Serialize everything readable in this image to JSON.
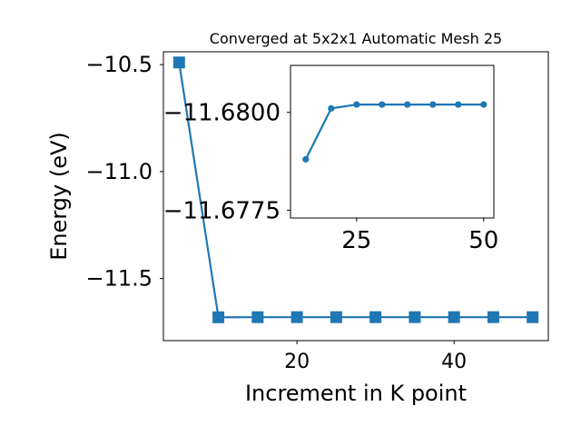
{
  "colors": {
    "series": "#1f77b4",
    "axis": "#000000",
    "background": "#ffffff"
  },
  "chart_data": [
    {
      "type": "line",
      "title": "Converged at 5x2x1 Automatic Mesh 25",
      "xlabel": "Increment in K point",
      "ylabel": "Energy (eV)",
      "xlim": [
        3.0,
        52.0
      ],
      "ylim": [
        -11.79,
        -10.44
      ],
      "xticks": [
        20,
        40
      ],
      "xtick_labels": [
        "20",
        "40"
      ],
      "yticks": [
        -10.5,
        -11.0,
        -11.5
      ],
      "ytick_labels": [
        "−10.5",
        "−11.0",
        "−11.5"
      ],
      "marker": "square",
      "grid": false,
      "series": [
        {
          "x": [
            5,
            10,
            15,
            20,
            25,
            30,
            35,
            40,
            45,
            50
          ],
          "values": [
            -10.49,
            -11.6809,
            -11.6804,
            -11.6803,
            -11.6803,
            -11.6803,
            -11.6803,
            -11.6803,
            -11.6803,
            -11.6803
          ]
        }
      ]
    },
    {
      "type": "line",
      "title": "",
      "xlabel": "",
      "ylabel": "",
      "xlim": [
        12.0,
        52.0
      ],
      "ylim": [
        -11.6773,
        -11.6812
      ],
      "xticks": [
        25,
        50
      ],
      "xtick_labels": [
        "25",
        "50"
      ],
      "yticks": [
        -11.68,
        -11.6775
      ],
      "ytick_labels": [
        "−11.6800",
        "−11.6775"
      ],
      "marker": "circle",
      "grid": false,
      "series": [
        {
          "x": [
            15,
            20,
            25,
            30,
            35,
            40,
            45,
            50
          ],
          "values": [
            -11.6788,
            -11.6801,
            -11.6802,
            -11.6802,
            -11.6802,
            -11.6802,
            -11.6802,
            -11.6802
          ]
        }
      ]
    }
  ]
}
